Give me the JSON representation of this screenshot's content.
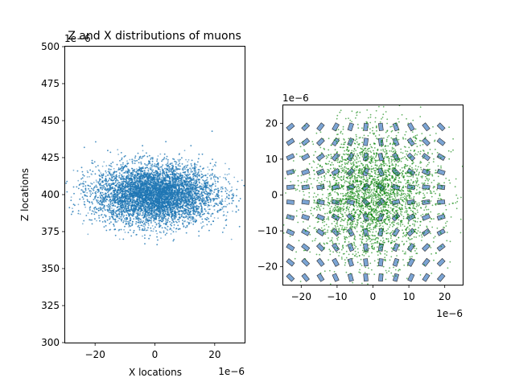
{
  "chart_data": [
    {
      "type": "scatter",
      "title": "Z and X distributions of muons",
      "xlabel": "X locations",
      "ylabel": "Z locations",
      "xlim": [
        -30,
        30
      ],
      "ylim": [
        300,
        500
      ],
      "x_ticks": [
        -20,
        0,
        20
      ],
      "y_ticks": [
        300,
        325,
        350,
        375,
        400,
        425,
        450,
        475,
        500
      ],
      "x_offset_label": "1e−6",
      "y_offset_label": "1e−6",
      "grid": false,
      "color": "#1f77b4",
      "series": [
        {
          "distribution": "gaussian",
          "x_center": 0,
          "x_sigma": 10,
          "y_center": 400,
          "y_sigma": 10,
          "approx_points": 10000
        }
      ]
    },
    {
      "type": "scatter",
      "title": "",
      "xlabel": "",
      "ylabel": "",
      "xlim": [
        -25,
        25
      ],
      "ylim": [
        -25,
        25
      ],
      "x_ticks": [
        -20,
        -10,
        0,
        10,
        20
      ],
      "y_ticks": [
        -20,
        -10,
        0,
        10,
        20
      ],
      "x_offset_label": "1e−6",
      "y_offset_label": "1e−6",
      "grid": false,
      "color": "#008000",
      "series": [
        {
          "distribution": "gaussian",
          "x_center": 0,
          "x_sigma": 9,
          "y_center": 0,
          "y_sigma": 9,
          "approx_points": 3000
        }
      ],
      "overlay": {
        "type": "lattice",
        "spacing": 4.2,
        "color": "#4f86c6",
        "edgecolor": "#2a2a2a"
      }
    }
  ]
}
